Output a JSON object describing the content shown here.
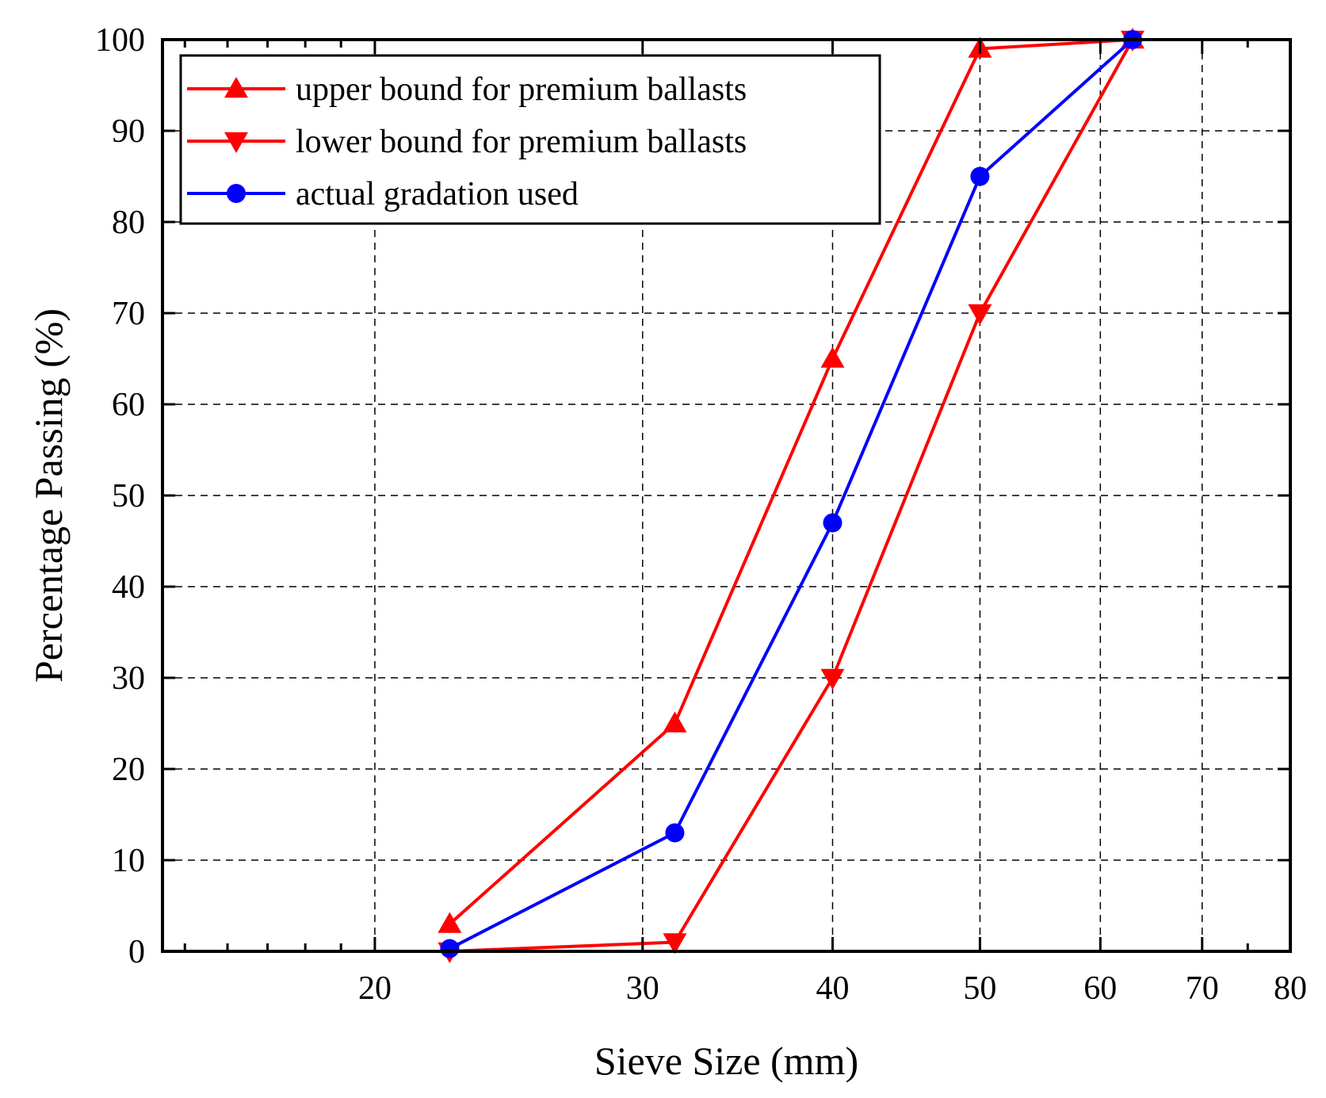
{
  "chart_data": {
    "type": "line",
    "title": "",
    "xlabel": "Sieve Size (mm)",
    "ylabel": "Percentage Passing (%)",
    "x_scale": "log",
    "xlim": [
      14.5,
      80
    ],
    "ylim": [
      0,
      100
    ],
    "x_ticks": [
      20,
      30,
      40,
      50,
      60,
      70,
      80
    ],
    "x_tick_labels": [
      "20",
      "30",
      "40",
      "50",
      "60",
      "70",
      "80"
    ],
    "x_minor_ticks": [
      15,
      16,
      17,
      18,
      19,
      75
    ],
    "y_ticks": [
      0,
      10,
      20,
      30,
      40,
      50,
      60,
      70,
      80,
      90,
      100
    ],
    "y_tick_labels": [
      "0",
      "10",
      "20",
      "30",
      "40",
      "50",
      "60",
      "70",
      "80",
      "90",
      "100"
    ],
    "grid": true,
    "legend_position": "top-left",
    "series": [
      {
        "name": "upper bound for premium ballasts",
        "color": "#ff0000",
        "marker": "triangle-up",
        "x": [
          22.4,
          31.5,
          40,
          50,
          63
        ],
        "y": [
          3,
          25,
          65,
          99,
          100
        ]
      },
      {
        "name": "lower bound for premium ballasts",
        "color": "#ff0000",
        "marker": "triangle-down",
        "x": [
          22.4,
          31.5,
          40,
          50,
          63
        ],
        "y": [
          0,
          1,
          30,
          70,
          100
        ]
      },
      {
        "name": "actual gradation used",
        "color": "#0000ff",
        "marker": "circle",
        "x": [
          22.4,
          31.5,
          40,
          50,
          63
        ],
        "y": [
          0.3,
          13,
          47,
          85,
          100
        ]
      }
    ]
  }
}
